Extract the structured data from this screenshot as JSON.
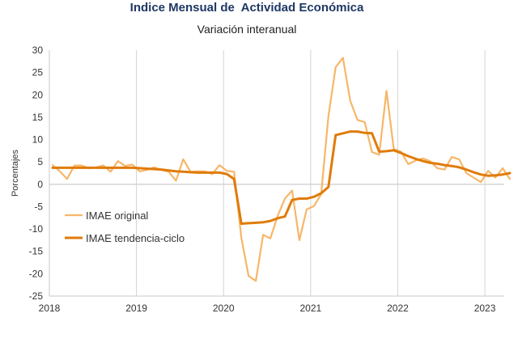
{
  "chart_data": {
    "type": "line",
    "title": "Indice Mensual de  Actividad Económica",
    "subtitle": "Variación interanual",
    "xlabel": "",
    "ylabel": "Porcentajes",
    "ylim": [
      -25,
      30
    ],
    "y_ticks": [
      30,
      25,
      20,
      15,
      10,
      5,
      0,
      -5,
      -10,
      -15,
      -20,
      -25
    ],
    "x_ticks": [
      "2018",
      "2019",
      "2020",
      "2021",
      "2022",
      "2023"
    ],
    "grid": "vertical",
    "legend_position": "lower-left",
    "x_start": "2018-01",
    "x_end": "2023-03",
    "series": [
      {
        "name": "IMAE original",
        "color": "#f7b668",
        "values": [
          4.3,
          2.9,
          1.2,
          4.2,
          4.2,
          3.6,
          3.8,
          4.2,
          2.8,
          5.2,
          4.1,
          4.4,
          2.9,
          3.2,
          3.8,
          3.2,
          2.8,
          0.8,
          5.6,
          2.8,
          2.9,
          2.9,
          2.3,
          4.3,
          3.0,
          2.8,
          -12.0,
          -20.5,
          -21.6,
          -11.3,
          -12.1,
          -7.1,
          -3.2,
          -1.4,
          -12.5,
          -5.6,
          -4.9,
          -2.2,
          15.3,
          26.2,
          28.3,
          18.7,
          14.4,
          13.9,
          7.2,
          6.6,
          20.9,
          7.9,
          7.3,
          4.5,
          5.3,
          5.8,
          5.2,
          3.6,
          3.3,
          6.1,
          5.6,
          2.5,
          1.5,
          0.5,
          3.0,
          1.5,
          3.6,
          1.2
        ]
      },
      {
        "name": "IMAE tendencia-ciclo",
        "color": "#e07b0a",
        "values": [
          3.7,
          3.7,
          3.7,
          3.7,
          3.7,
          3.7,
          3.7,
          3.7,
          3.7,
          3.7,
          3.7,
          3.7,
          3.6,
          3.5,
          3.4,
          3.3,
          3.1,
          2.9,
          2.8,
          2.7,
          2.6,
          2.6,
          2.6,
          2.6,
          2.3,
          1.2,
          -8.8,
          -8.7,
          -8.6,
          -8.5,
          -8.2,
          -7.6,
          -7.2,
          -3.5,
          -3.2,
          -3.2,
          -2.8,
          -2.0,
          -0.6,
          11.0,
          11.4,
          11.8,
          11.8,
          11.5,
          11.4,
          7.3,
          7.4,
          7.6,
          7.0,
          6.3,
          5.7,
          5.2,
          4.8,
          4.6,
          4.3,
          4.1,
          3.8,
          3.3,
          2.7,
          2.2,
          1.9,
          2.0,
          2.2,
          2.5
        ]
      }
    ]
  }
}
